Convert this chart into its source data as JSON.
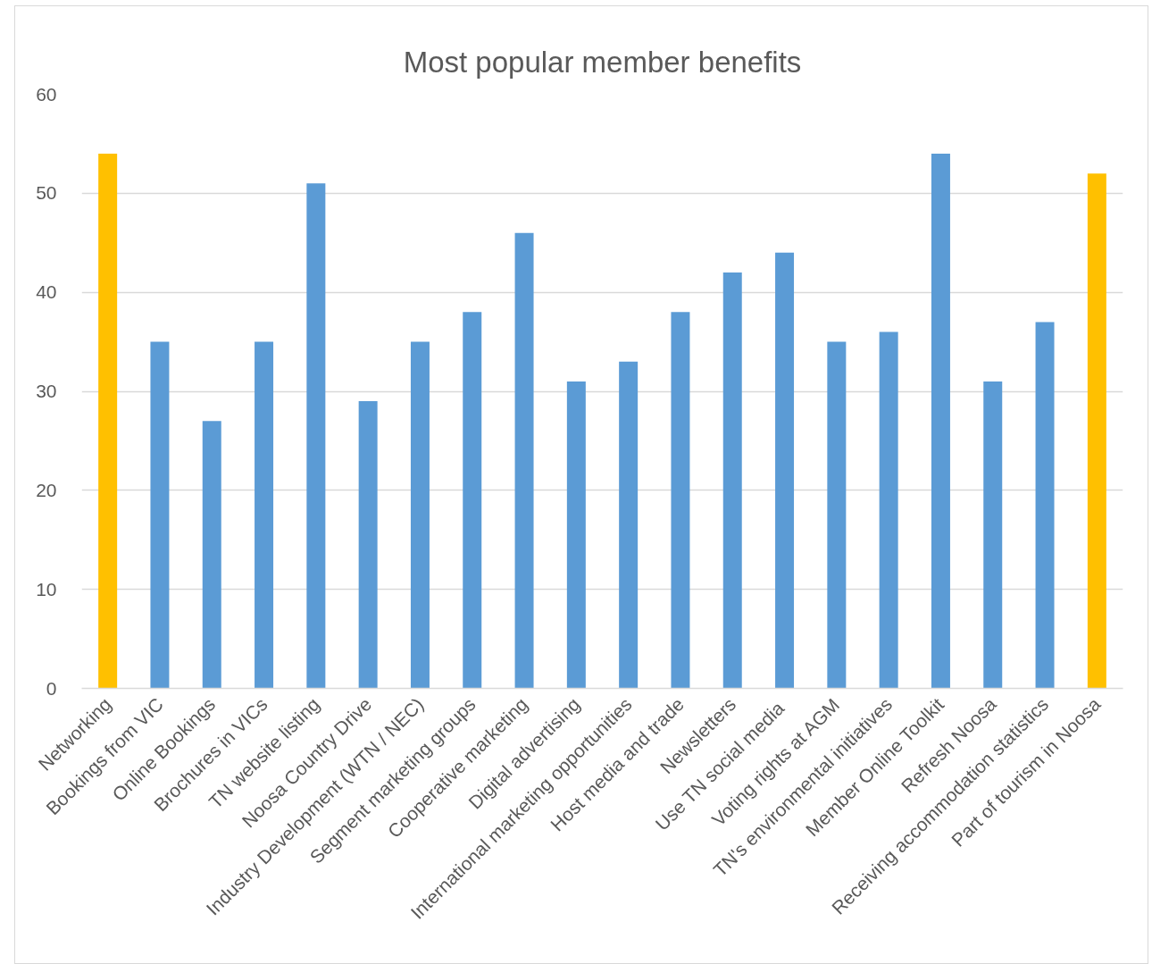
{
  "chart_data": {
    "type": "bar",
    "title": "Most popular member benefits",
    "categories": [
      "Networking",
      "Bookings from VIC",
      "Online Bookings",
      "Brochures in VICs",
      "TN website listing",
      "Noosa Country Drive",
      "Industry Development (WTN / NEC)",
      "Segment marketing groups",
      "Cooperative marketing",
      "Digital advertising",
      "International marketing opportunities",
      "Host media and trade",
      "Newsletters",
      "Use TN  social media",
      "Voting rights at AGM",
      "TN's environmental initiatives",
      "Member Online Toolkit",
      "Refresh Noosa",
      "Receiving accommodation statistics",
      "Part of tourism in Noosa"
    ],
    "values": [
      54,
      35,
      27,
      35,
      51,
      29,
      35,
      38,
      46,
      31,
      33,
      38,
      42,
      44,
      35,
      36,
      54,
      31,
      37,
      52
    ],
    "colors": [
      "#ffc000",
      "#5b9bd5",
      "#5b9bd5",
      "#5b9bd5",
      "#5b9bd5",
      "#5b9bd5",
      "#5b9bd5",
      "#5b9bd5",
      "#5b9bd5",
      "#5b9bd5",
      "#5b9bd5",
      "#5b9bd5",
      "#5b9bd5",
      "#5b9bd5",
      "#5b9bd5",
      "#5b9bd5",
      "#5b9bd5",
      "#5b9bd5",
      "#5b9bd5",
      "#ffc000"
    ],
    "ylim": [
      0,
      60
    ],
    "yticks": [
      0,
      10,
      20,
      30,
      40,
      50,
      60
    ],
    "grid": "y"
  }
}
